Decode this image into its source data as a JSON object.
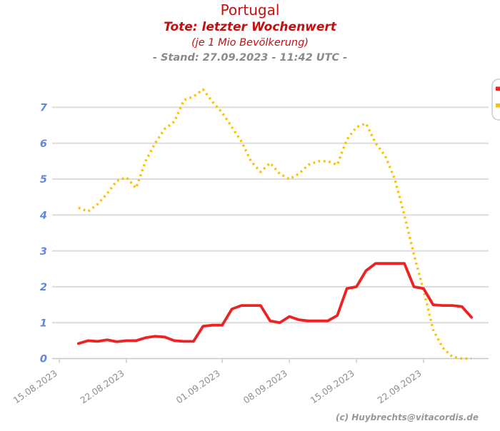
{
  "header": {
    "title": "Portugal",
    "subtitle": "Tote: letzter Wochenwert",
    "unit_note": "(je 1 Mio Bevölkerung)",
    "stand": "- Stand: 27.09.2023 - 11:42 UTC -"
  },
  "footer": {
    "credit": "(c) Huybrechts@vitacordis.de"
  },
  "colors": {
    "title_red": "#c41111",
    "stand_gray": "#8a8a8a",
    "red_line": "#ee2222",
    "yellow_line": "#fcc200",
    "y_label_blue": "#6287d9",
    "x_label_gray": "#8f8f8f",
    "gridline": "#dcdcdc",
    "axis": "#c8c8c8",
    "legend_border": "#cccccc"
  },
  "chart_data": {
    "type": "line",
    "title": "Portugal - Tote: letzter Wochenwert (je 1 Mio Bevölkerung)",
    "x_tick_labels": [
      "15.08.2023",
      "22.08.2023",
      "01.09.2023",
      "08.09.2023",
      "15.09.2023",
      "22.09.2023"
    ],
    "x_tick_day_offsets": [
      0,
      7,
      17,
      24,
      31,
      38
    ],
    "y_tick_labels": [
      "0",
      "1",
      "2",
      "3",
      "4",
      "5",
      "6",
      "7"
    ],
    "ylim": [
      0,
      7.6
    ],
    "grid": true,
    "points_start_date": "17.08.2023",
    "points_end_date": "27.09.2023",
    "points_interval": "daily",
    "first_point_day_offset": 2,
    "legend": {
      "position": "top-right, clipped at image edge, labels not visible",
      "marker_colors": [
        "#ee2222",
        "#fcc200"
      ]
    },
    "series": [
      {
        "name": "yellow-dotted",
        "color": "#fcc200",
        "style": "dotted",
        "values": [
          4.2,
          4.1,
          4.3,
          4.6,
          4.95,
          5.05,
          4.75,
          5.5,
          6.0,
          6.4,
          6.6,
          7.2,
          7.3,
          7.5,
          7.15,
          6.85,
          6.45,
          6.05,
          5.5,
          5.2,
          5.45,
          5.15,
          5.0,
          5.15,
          5.4,
          5.5,
          5.5,
          5.4,
          6.1,
          6.45,
          6.55,
          6.0,
          5.65,
          5.0,
          4.0,
          2.9,
          1.9,
          0.8,
          0.3,
          0.05,
          0.0,
          0.0
        ]
      },
      {
        "name": "red-solid",
        "color": "#ee2222",
        "style": "solid",
        "values": [
          0.42,
          0.5,
          0.48,
          0.52,
          0.47,
          0.5,
          0.5,
          0.58,
          0.62,
          0.6,
          0.5,
          0.48,
          0.48,
          0.9,
          0.93,
          0.93,
          1.38,
          1.48,
          1.48,
          1.48,
          1.05,
          1.0,
          1.17,
          1.08,
          1.05,
          1.05,
          1.05,
          1.2,
          1.95,
          2.0,
          2.45,
          2.65,
          2.65,
          2.65,
          2.65,
          2.0,
          1.95,
          1.5,
          1.48,
          1.48,
          1.45,
          1.15
        ]
      }
    ]
  }
}
